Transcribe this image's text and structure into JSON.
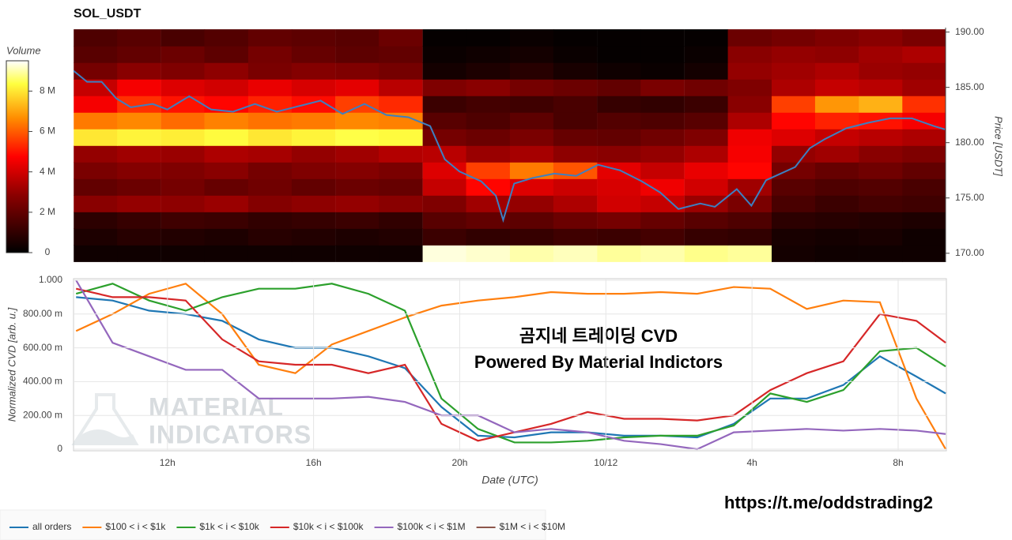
{
  "chart_data": [
    {
      "type": "heatmap",
      "title": "SOL_USDT",
      "colorbar_title": "Volume",
      "ylabel": "Price [USDT]",
      "y_axis_side": "right",
      "xlim": [
        9.43,
        33.32
      ],
      "ylim": [
        169.2,
        190.4
      ],
      "yticks": [
        {
          "value": 170,
          "label": "170.00"
        },
        {
          "value": 175,
          "label": "175.00"
        },
        {
          "value": 180,
          "label": "180.00"
        },
        {
          "value": 185,
          "label": "185.00"
        },
        {
          "value": 190,
          "label": "190.00"
        }
      ],
      "zlim": [
        0,
        9.5
      ],
      "zticks": [
        0,
        {
          "value": 2,
          "label": "2 M"
        },
        {
          "value": 4,
          "label": "4 M"
        },
        {
          "value": 6,
          "label": "6 M"
        },
        {
          "value": 8,
          "label": "8 M"
        }
      ],
      "colorscale": [
        [
          0,
          "#000000"
        ],
        [
          0.3,
          "#8b0000"
        ],
        [
          0.5,
          "#ff0000"
        ],
        [
          0.7,
          "#ff8c00"
        ],
        [
          0.88,
          "#ffff40"
        ],
        [
          1,
          "#ffffff"
        ]
      ],
      "x": [
        10.03,
        11.22,
        12.42,
        13.61,
        14.81,
        16.0,
        17.2,
        18.39,
        19.59,
        20.78,
        21.98,
        23.17,
        24.37,
        25.56,
        26.76,
        27.95,
        29.15,
        30.34,
        31.54,
        32.73
      ],
      "y": [
        170,
        171.5,
        173,
        174.5,
        176,
        177.5,
        179,
        180.5,
        182,
        183.5,
        185,
        186.5,
        188,
        189.5
      ],
      "z": [
        [
          0.3,
          0.3,
          0.3,
          0.3,
          0.3,
          0.3,
          0.3,
          0.3,
          9.3,
          9.2,
          9.0,
          9.1,
          8.9,
          9.0,
          8.8,
          8.9,
          0.4,
          0.3,
          0.3,
          0.3
        ],
        [
          0.6,
          0.8,
          0.7,
          0.6,
          0.8,
          0.7,
          0.6,
          0.7,
          1.2,
          1.0,
          1.1,
          1.3,
          1.2,
          1.4,
          1.1,
          1.0,
          0.5,
          0.4,
          0.5,
          0.3
        ],
        [
          0.9,
          1.1,
          1.3,
          1.2,
          1.0,
          1.1,
          1.2,
          1.0,
          1.8,
          2.0,
          1.9,
          2.2,
          2.4,
          2.1,
          1.8,
          1.6,
          0.9,
          0.8,
          0.7,
          0.6
        ],
        [
          2.8,
          3.0,
          2.9,
          3.1,
          2.7,
          2.9,
          3.0,
          2.8,
          2.6,
          3.2,
          3.0,
          3.4,
          4.0,
          3.8,
          3.1,
          2.5,
          1.5,
          1.2,
          1.4,
          1.3
        ],
        [
          2.0,
          2.2,
          2.4,
          2.1,
          2.3,
          2.0,
          2.2,
          2.1,
          3.8,
          4.8,
          4.2,
          3.9,
          4.1,
          4.5,
          4.0,
          3.2,
          1.8,
          1.6,
          1.7,
          1.5
        ],
        [
          2.5,
          2.7,
          2.6,
          2.8,
          2.4,
          2.6,
          2.7,
          2.5,
          4.2,
          5.6,
          6.4,
          5.9,
          4.3,
          3.8,
          4.4,
          4.8,
          2.4,
          2.1,
          2.3,
          2.0
        ],
        [
          3.0,
          3.2,
          3.1,
          3.4,
          3.3,
          3.0,
          3.2,
          3.5,
          3.6,
          3.1,
          3.3,
          2.9,
          2.8,
          3.0,
          3.4,
          4.6,
          3.0,
          3.2,
          2.8,
          2.6
        ],
        [
          8.0,
          8.2,
          8.1,
          8.3,
          8.0,
          8.2,
          8.4,
          8.3,
          2.4,
          2.2,
          2.5,
          2.1,
          2.0,
          2.3,
          2.6,
          4.5,
          4.2,
          3.8,
          3.6,
          3.4
        ],
        [
          6.4,
          6.6,
          6.2,
          6.5,
          6.3,
          6.4,
          6.6,
          6.5,
          1.8,
          1.6,
          1.9,
          1.5,
          1.7,
          1.6,
          1.8,
          3.4,
          4.8,
          5.2,
          5.0,
          4.6
        ],
        [
          4.6,
          5.4,
          5.0,
          4.8,
          5.2,
          4.9,
          5.6,
          5.3,
          1.2,
          1.4,
          1.3,
          1.5,
          1.1,
          1.0,
          1.2,
          2.8,
          5.6,
          6.8,
          7.2,
          5.4
        ],
        [
          3.8,
          4.6,
          4.2,
          4.0,
          4.4,
          4.1,
          4.3,
          3.6,
          2.6,
          2.8,
          2.4,
          2.2,
          2.0,
          2.5,
          2.3,
          2.6,
          3.4,
          3.8,
          3.6,
          3.2
        ],
        [
          2.4,
          2.8,
          2.6,
          2.9,
          2.5,
          2.7,
          2.6,
          2.4,
          0.4,
          0.6,
          0.8,
          0.5,
          0.3,
          0.2,
          0.4,
          3.0,
          3.2,
          3.4,
          3.1,
          3.0
        ],
        [
          1.8,
          2.0,
          2.2,
          1.9,
          2.4,
          2.1,
          1.9,
          2.0,
          0.2,
          0.3,
          0.4,
          0.2,
          0.1,
          0.1,
          0.2,
          2.8,
          3.0,
          2.9,
          3.2,
          3.4
        ],
        [
          1.6,
          1.8,
          1.5,
          1.7,
          2.0,
          1.9,
          1.8,
          2.2,
          0.1,
          0.1,
          0.2,
          0.1,
          0.1,
          0.1,
          0.1,
          2.2,
          2.4,
          2.6,
          2.8,
          2.5
        ]
      ],
      "overlay": {
        "type": "line",
        "color": "#3d7fc1",
        "x": [
          9.43,
          9.8,
          10.2,
          10.6,
          11.0,
          11.6,
          12.0,
          12.6,
          13.2,
          13.8,
          14.4,
          15.0,
          15.6,
          16.2,
          16.8,
          17.4,
          18.0,
          18.6,
          19.2,
          19.6,
          20.0,
          20.6,
          21.0,
          21.2,
          21.5,
          22.0,
          22.6,
          23.2,
          23.8,
          24.4,
          25.0,
          25.5,
          26.0,
          26.6,
          27.0,
          27.6,
          28.0,
          28.4,
          28.8,
          29.2,
          29.6,
          30.0,
          30.6,
          31.2,
          31.8,
          32.4,
          33.0,
          33.3
        ],
        "values": [
          186.5,
          185.5,
          185.5,
          184.0,
          183.2,
          183.5,
          183.0,
          184.2,
          183.0,
          182.8,
          183.5,
          182.8,
          183.3,
          183.8,
          182.6,
          183.5,
          182.5,
          182.3,
          181.5,
          178.5,
          177.4,
          176.5,
          175.2,
          173.0,
          176.3,
          176.8,
          177.2,
          177.0,
          178.0,
          177.5,
          176.5,
          175.5,
          174.0,
          174.5,
          174.2,
          175.8,
          174.3,
          176.6,
          177.2,
          177.8,
          179.5,
          180.3,
          181.3,
          181.8,
          182.2,
          182.2,
          181.5,
          181.2
        ]
      }
    },
    {
      "type": "line",
      "xlabel": "Date (UTC)",
      "ylabel": "Normalized CVD [arb. u.]",
      "grid": true,
      "legend": "bottom",
      "annotations": [
        "곰지네 트레이딩 CVD",
        "Powered By Material Indictors"
      ],
      "xlim": [
        9.43,
        33.32
      ],
      "ylim": [
        0,
        1
      ],
      "xticks": [
        {
          "value": 12,
          "label": "12h"
        },
        {
          "value": 16,
          "label": "16h"
        },
        {
          "value": 20,
          "label": "20h"
        },
        {
          "value": 24,
          "label": "10/12"
        },
        {
          "value": 28,
          "label": "4h"
        },
        {
          "value": 32,
          "label": "8h"
        }
      ],
      "yticks": [
        0,
        {
          "value": 0.2,
          "label": "200.00 m"
        },
        {
          "value": 0.4,
          "label": "400.00 m"
        },
        {
          "value": 0.6,
          "label": "600.00 m"
        },
        {
          "value": 0.8,
          "label": "800.00 m"
        },
        {
          "value": 1,
          "label": "1.000"
        }
      ],
      "x": [
        9.5,
        10.5,
        11.5,
        12.5,
        13.5,
        14.5,
        15.5,
        16.5,
        17.5,
        18.5,
        19.5,
        20.5,
        21.5,
        22.5,
        23.5,
        24.5,
        25.5,
        26.5,
        27.5,
        28.5,
        29.5,
        30.5,
        31.5,
        32.5,
        33.3
      ],
      "series": [
        {
          "name": "all orders",
          "color": "#1f77b4",
          "values": [
            0.9,
            0.88,
            0.82,
            0.8,
            0.76,
            0.65,
            0.6,
            0.6,
            0.55,
            0.48,
            0.25,
            0.08,
            0.07,
            0.1,
            0.1,
            0.08,
            0.08,
            0.07,
            0.15,
            0.3,
            0.3,
            0.38,
            0.55,
            0.43,
            0.33
          ]
        },
        {
          "name": "$100 < i < $1k",
          "color": "#ff7f0e",
          "values": [
            0.7,
            0.8,
            0.92,
            0.98,
            0.8,
            0.5,
            0.45,
            0.62,
            0.7,
            0.78,
            0.85,
            0.88,
            0.9,
            0.93,
            0.92,
            0.92,
            0.93,
            0.92,
            0.96,
            0.95,
            0.83,
            0.88,
            0.87,
            0.3,
            0.0
          ]
        },
        {
          "name": "$1k < i < $10k",
          "color": "#2ca02c",
          "values": [
            0.92,
            0.98,
            0.88,
            0.82,
            0.9,
            0.95,
            0.95,
            0.98,
            0.92,
            0.82,
            0.3,
            0.12,
            0.04,
            0.04,
            0.05,
            0.07,
            0.08,
            0.08,
            0.14,
            0.33,
            0.28,
            0.35,
            0.58,
            0.6,
            0.49
          ]
        },
        {
          "name": "$10k < i < $100k",
          "color": "#d62728",
          "values": [
            0.95,
            0.9,
            0.9,
            0.88,
            0.65,
            0.52,
            0.5,
            0.5,
            0.45,
            0.5,
            0.15,
            0.05,
            0.1,
            0.15,
            0.22,
            0.18,
            0.18,
            0.17,
            0.2,
            0.35,
            0.45,
            0.52,
            0.8,
            0.76,
            0.63
          ]
        },
        {
          "name": "$100k < i < $1M",
          "color": "#9467bd",
          "values": [
            1.0,
            0.63,
            0.55,
            0.47,
            0.47,
            0.3,
            0.3,
            0.3,
            0.31,
            0.28,
            0.2,
            0.2,
            0.1,
            0.12,
            0.1,
            0.05,
            0.03,
            0.0,
            0.1,
            0.11,
            0.12,
            0.11,
            0.12,
            0.11,
            0.09
          ]
        },
        {
          "name": "$1M < i < $10M",
          "color": "#8c564b",
          "values": [
            null,
            null,
            null,
            null,
            null,
            null,
            null,
            null,
            null,
            null,
            null,
            null,
            null,
            null,
            null,
            null,
            null,
            null,
            null,
            null,
            null,
            null,
            null,
            null,
            null
          ]
        }
      ]
    }
  ],
  "watermark": [
    "MATERIAL",
    "INDICATORS"
  ],
  "link": "https://t.me/oddstrading2"
}
